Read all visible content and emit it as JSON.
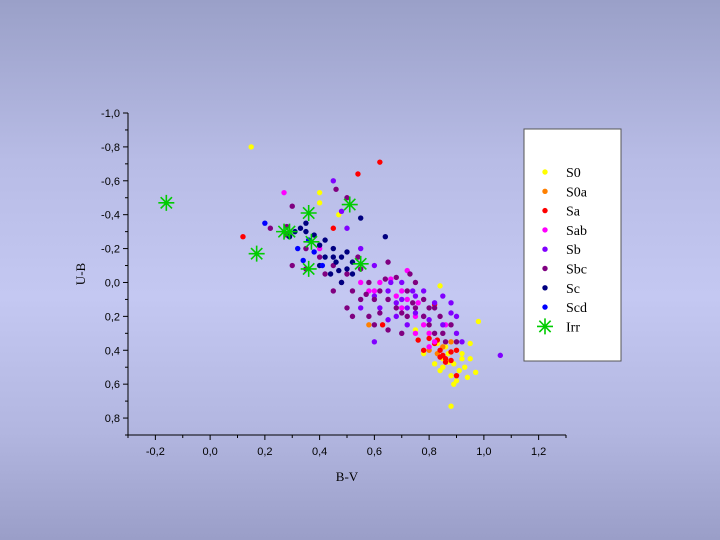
{
  "chart_data": {
    "type": "scatter",
    "xlabel": "B-V",
    "ylabel": "U-B",
    "xlim": [
      -0.3,
      1.3
    ],
    "ylim": [
      0.9,
      -1.0
    ],
    "y_inverted": true,
    "x_ticks": [
      {
        "value": -0.2,
        "label": "-0,2"
      },
      {
        "value": 0.0,
        "label": "0,0"
      },
      {
        "value": 0.2,
        "label": "0,2"
      },
      {
        "value": 0.4,
        "label": "0,4"
      },
      {
        "value": 0.6,
        "label": "0,6"
      },
      {
        "value": 0.8,
        "label": "0,8"
      },
      {
        "value": 1.0,
        "label": "1,0"
      },
      {
        "value": 1.2,
        "label": "1,2"
      }
    ],
    "y_ticks": [
      {
        "value": -1.0,
        "label": "-1,0"
      },
      {
        "value": -0.8,
        "label": "-0,8"
      },
      {
        "value": -0.6,
        "label": "-0,6"
      },
      {
        "value": -0.4,
        "label": "-0,4"
      },
      {
        "value": -0.2,
        "label": "-0,2"
      },
      {
        "value": 0.0,
        "label": "0,0"
      },
      {
        "value": 0.2,
        "label": "0,2"
      },
      {
        "value": 0.4,
        "label": "0,4"
      },
      {
        "value": 0.6,
        "label": "0,6"
      },
      {
        "value": 0.8,
        "label": "0,8"
      }
    ],
    "grid": false,
    "legend_position": "top-right",
    "series": [
      {
        "name": "S0",
        "color": "#ffff00",
        "marker": "dot",
        "points": [
          [
            0.15,
            -0.8
          ],
          [
            0.4,
            -0.53
          ],
          [
            0.4,
            -0.47
          ],
          [
            0.47,
            -0.4
          ],
          [
            0.87,
            0.42
          ],
          [
            0.9,
            0.4
          ],
          [
            0.92,
            0.45
          ],
          [
            0.85,
            0.5
          ],
          [
            0.88,
            0.55
          ],
          [
            0.93,
            0.5
          ],
          [
            0.95,
            0.45
          ],
          [
            0.82,
            0.48
          ],
          [
            0.9,
            0.58
          ],
          [
            0.94,
            0.56
          ],
          [
            0.97,
            0.53
          ],
          [
            0.86,
            0.38
          ],
          [
            0.88,
            0.73
          ],
          [
            0.98,
            0.23
          ],
          [
            0.95,
            0.36
          ],
          [
            0.8,
            0.3
          ],
          [
            0.84,
            0.02
          ],
          [
            0.83,
            0.36
          ],
          [
            0.89,
            0.48
          ],
          [
            0.91,
            0.52
          ],
          [
            0.85,
            0.45
          ],
          [
            0.87,
            0.47
          ],
          [
            0.92,
            0.42
          ],
          [
            0.84,
            0.52
          ],
          [
            0.89,
            0.6
          ],
          [
            0.78,
            0.42
          ],
          [
            0.75,
            0.28
          ]
        ]
      },
      {
        "name": "S0a",
        "color": "#ff8000",
        "marker": "dot",
        "points": [
          [
            0.58,
            0.25
          ],
          [
            0.85,
            0.38
          ],
          [
            0.8,
            0.4
          ],
          [
            0.88,
            0.35
          ],
          [
            0.83,
            0.42
          ]
        ]
      },
      {
        "name": "Sa",
        "color": "#ff0000",
        "marker": "dot",
        "points": [
          [
            0.62,
            -0.71
          ],
          [
            0.54,
            -0.64
          ],
          [
            0.12,
            -0.27
          ],
          [
            0.45,
            -0.32
          ],
          [
            0.63,
            0.25
          ],
          [
            0.83,
            0.34
          ],
          [
            0.85,
            0.43
          ],
          [
            0.9,
            0.4
          ],
          [
            0.86,
            0.45
          ],
          [
            0.82,
            0.13
          ],
          [
            0.9,
            0.55
          ],
          [
            0.88,
            0.46
          ],
          [
            0.78,
            0.4
          ],
          [
            0.84,
            0.4
          ],
          [
            0.76,
            0.34
          ],
          [
            0.86,
            0.47
          ],
          [
            0.8,
            0.33
          ],
          [
            0.84,
            0.44
          ],
          [
            0.88,
            0.41
          ],
          [
            0.82,
            0.36
          ]
        ]
      },
      {
        "name": "Sab",
        "color": "#ff00ff",
        "marker": "dot",
        "points": [
          [
            0.27,
            -0.53
          ],
          [
            0.4,
            -0.2
          ],
          [
            0.5,
            -0.05
          ],
          [
            0.55,
            0.0
          ],
          [
            0.6,
            0.05
          ],
          [
            0.65,
            0.1
          ],
          [
            0.7,
            0.15
          ],
          [
            0.72,
            -0.07
          ],
          [
            0.75,
            0.2
          ],
          [
            0.78,
            0.25
          ],
          [
            0.8,
            0.3
          ],
          [
            0.68,
            0.08
          ],
          [
            0.62,
            0.0
          ],
          [
            0.72,
            0.1
          ],
          [
            0.82,
            0.35
          ],
          [
            0.86,
            0.25
          ],
          [
            0.7,
            0.05
          ],
          [
            0.76,
            0.12
          ],
          [
            0.8,
            0.38
          ],
          [
            0.75,
            0.3
          ],
          [
            0.66,
            -0.02
          ],
          [
            0.58,
            0.05
          ]
        ]
      },
      {
        "name": "Sb",
        "color": "#8000ff",
        "marker": "dot",
        "points": [
          [
            0.45,
            -0.6
          ],
          [
            0.48,
            -0.42
          ],
          [
            0.5,
            -0.32
          ],
          [
            0.55,
            -0.2
          ],
          [
            0.6,
            -0.1
          ],
          [
            0.6,
            0.08
          ],
          [
            0.65,
            0.05
          ],
          [
            0.68,
            0.12
          ],
          [
            0.7,
            0.0
          ],
          [
            0.72,
            0.15
          ],
          [
            0.75,
            0.18
          ],
          [
            0.75,
            0.08
          ],
          [
            0.78,
            0.2
          ],
          [
            0.8,
            0.22
          ],
          [
            0.82,
            0.12
          ],
          [
            0.85,
            0.25
          ],
          [
            0.88,
            0.18
          ],
          [
            0.9,
            0.3
          ],
          [
            0.92,
            0.35
          ],
          [
            1.06,
            0.43
          ],
          [
            0.6,
            0.35
          ],
          [
            0.65,
            0.22
          ],
          [
            0.68,
            0.2
          ],
          [
            0.72,
            0.25
          ],
          [
            0.78,
            0.05
          ],
          [
            0.85,
            0.08
          ],
          [
            0.88,
            0.12
          ],
          [
            0.9,
            0.2
          ],
          [
            0.66,
            0.0
          ],
          [
            0.7,
            0.1
          ],
          [
            0.74,
            0.05
          ],
          [
            0.55,
            0.15
          ],
          [
            0.62,
            0.15
          ]
        ]
      },
      {
        "name": "Sbc",
        "color": "#800080",
        "marker": "dot",
        "points": [
          [
            0.3,
            -0.45
          ],
          [
            0.28,
            -0.33
          ],
          [
            0.35,
            -0.2
          ],
          [
            0.4,
            -0.15
          ],
          [
            0.42,
            -0.05
          ],
          [
            0.45,
            -0.1
          ],
          [
            0.48,
            0.0
          ],
          [
            0.5,
            -0.05
          ],
          [
            0.52,
            0.05
          ],
          [
            0.55,
            -0.08
          ],
          [
            0.55,
            0.1
          ],
          [
            0.58,
            0.0
          ],
          [
            0.6,
            0.1
          ],
          [
            0.62,
            0.05
          ],
          [
            0.65,
            0.1
          ],
          [
            0.68,
            -0.03
          ],
          [
            0.68,
            0.15
          ],
          [
            0.7,
            0.18
          ],
          [
            0.72,
            0.05
          ],
          [
            0.72,
            0.2
          ],
          [
            0.75,
            0.0
          ],
          [
            0.75,
            0.15
          ],
          [
            0.78,
            0.2
          ],
          [
            0.78,
            0.1
          ],
          [
            0.8,
            0.25
          ],
          [
            0.82,
            0.15
          ],
          [
            0.85,
            0.3
          ],
          [
            0.88,
            0.25
          ],
          [
            0.9,
            0.35
          ],
          [
            0.6,
            0.25
          ],
          [
            0.65,
            0.28
          ],
          [
            0.7,
            0.3
          ],
          [
            0.58,
            0.2
          ],
          [
            0.52,
            0.2
          ],
          [
            0.62,
            0.18
          ],
          [
            0.46,
            -0.55
          ],
          [
            0.5,
            -0.5
          ],
          [
            0.54,
            -0.15
          ],
          [
            0.64,
            -0.02
          ],
          [
            0.74,
            0.12
          ],
          [
            0.8,
            0.15
          ],
          [
            0.84,
            0.2
          ],
          [
            0.86,
            0.35
          ],
          [
            0.5,
            0.15
          ],
          [
            0.45,
            0.05
          ],
          [
            0.57,
            0.07
          ],
          [
            0.73,
            -0.05
          ],
          [
            0.35,
            -0.08
          ],
          [
            0.3,
            -0.1
          ],
          [
            0.28,
            -0.28
          ],
          [
            0.22,
            -0.32
          ],
          [
            0.65,
            -0.12
          ],
          [
            0.82,
            0.3
          ]
        ]
      },
      {
        "name": "Sc",
        "color": "#000080",
        "marker": "dot",
        "points": [
          [
            0.33,
            -0.32
          ],
          [
            0.35,
            -0.3
          ],
          [
            0.38,
            -0.28
          ],
          [
            0.4,
            -0.22
          ],
          [
            0.42,
            -0.15
          ],
          [
            0.45,
            -0.2
          ],
          [
            0.48,
            -0.15
          ],
          [
            0.5,
            -0.08
          ],
          [
            0.52,
            -0.05
          ],
          [
            0.35,
            -0.35
          ],
          [
            0.55,
            -0.38
          ],
          [
            0.64,
            -0.27
          ],
          [
            0.46,
            -0.12
          ],
          [
            0.44,
            -0.05
          ],
          [
            0.36,
            -0.25
          ],
          [
            0.31,
            -0.3
          ],
          [
            0.5,
            -0.18
          ],
          [
            0.47,
            -0.07
          ],
          [
            0.52,
            -0.12
          ],
          [
            0.4,
            -0.1
          ],
          [
            0.42,
            -0.25
          ],
          [
            0.29,
            -0.27
          ],
          [
            0.48,
            0.0
          ],
          [
            0.45,
            -0.15
          ]
        ]
      },
      {
        "name": "Scd",
        "color": "#0000ff",
        "marker": "dot",
        "points": [
          [
            0.2,
            -0.35
          ],
          [
            0.32,
            -0.2
          ],
          [
            0.36,
            -0.25
          ],
          [
            0.38,
            -0.18
          ],
          [
            0.41,
            -0.1
          ],
          [
            0.34,
            -0.13
          ]
        ]
      },
      {
        "name": "Irr",
        "color": "#00cc00",
        "marker": "star",
        "points": [
          [
            -0.16,
            -0.47
          ],
          [
            0.17,
            -0.17
          ],
          [
            0.27,
            -0.3
          ],
          [
            0.29,
            -0.3
          ],
          [
            0.36,
            -0.41
          ],
          [
            0.37,
            -0.24
          ],
          [
            0.36,
            -0.08
          ],
          [
            0.51,
            -0.46
          ],
          [
            0.55,
            -0.11
          ]
        ]
      }
    ]
  }
}
